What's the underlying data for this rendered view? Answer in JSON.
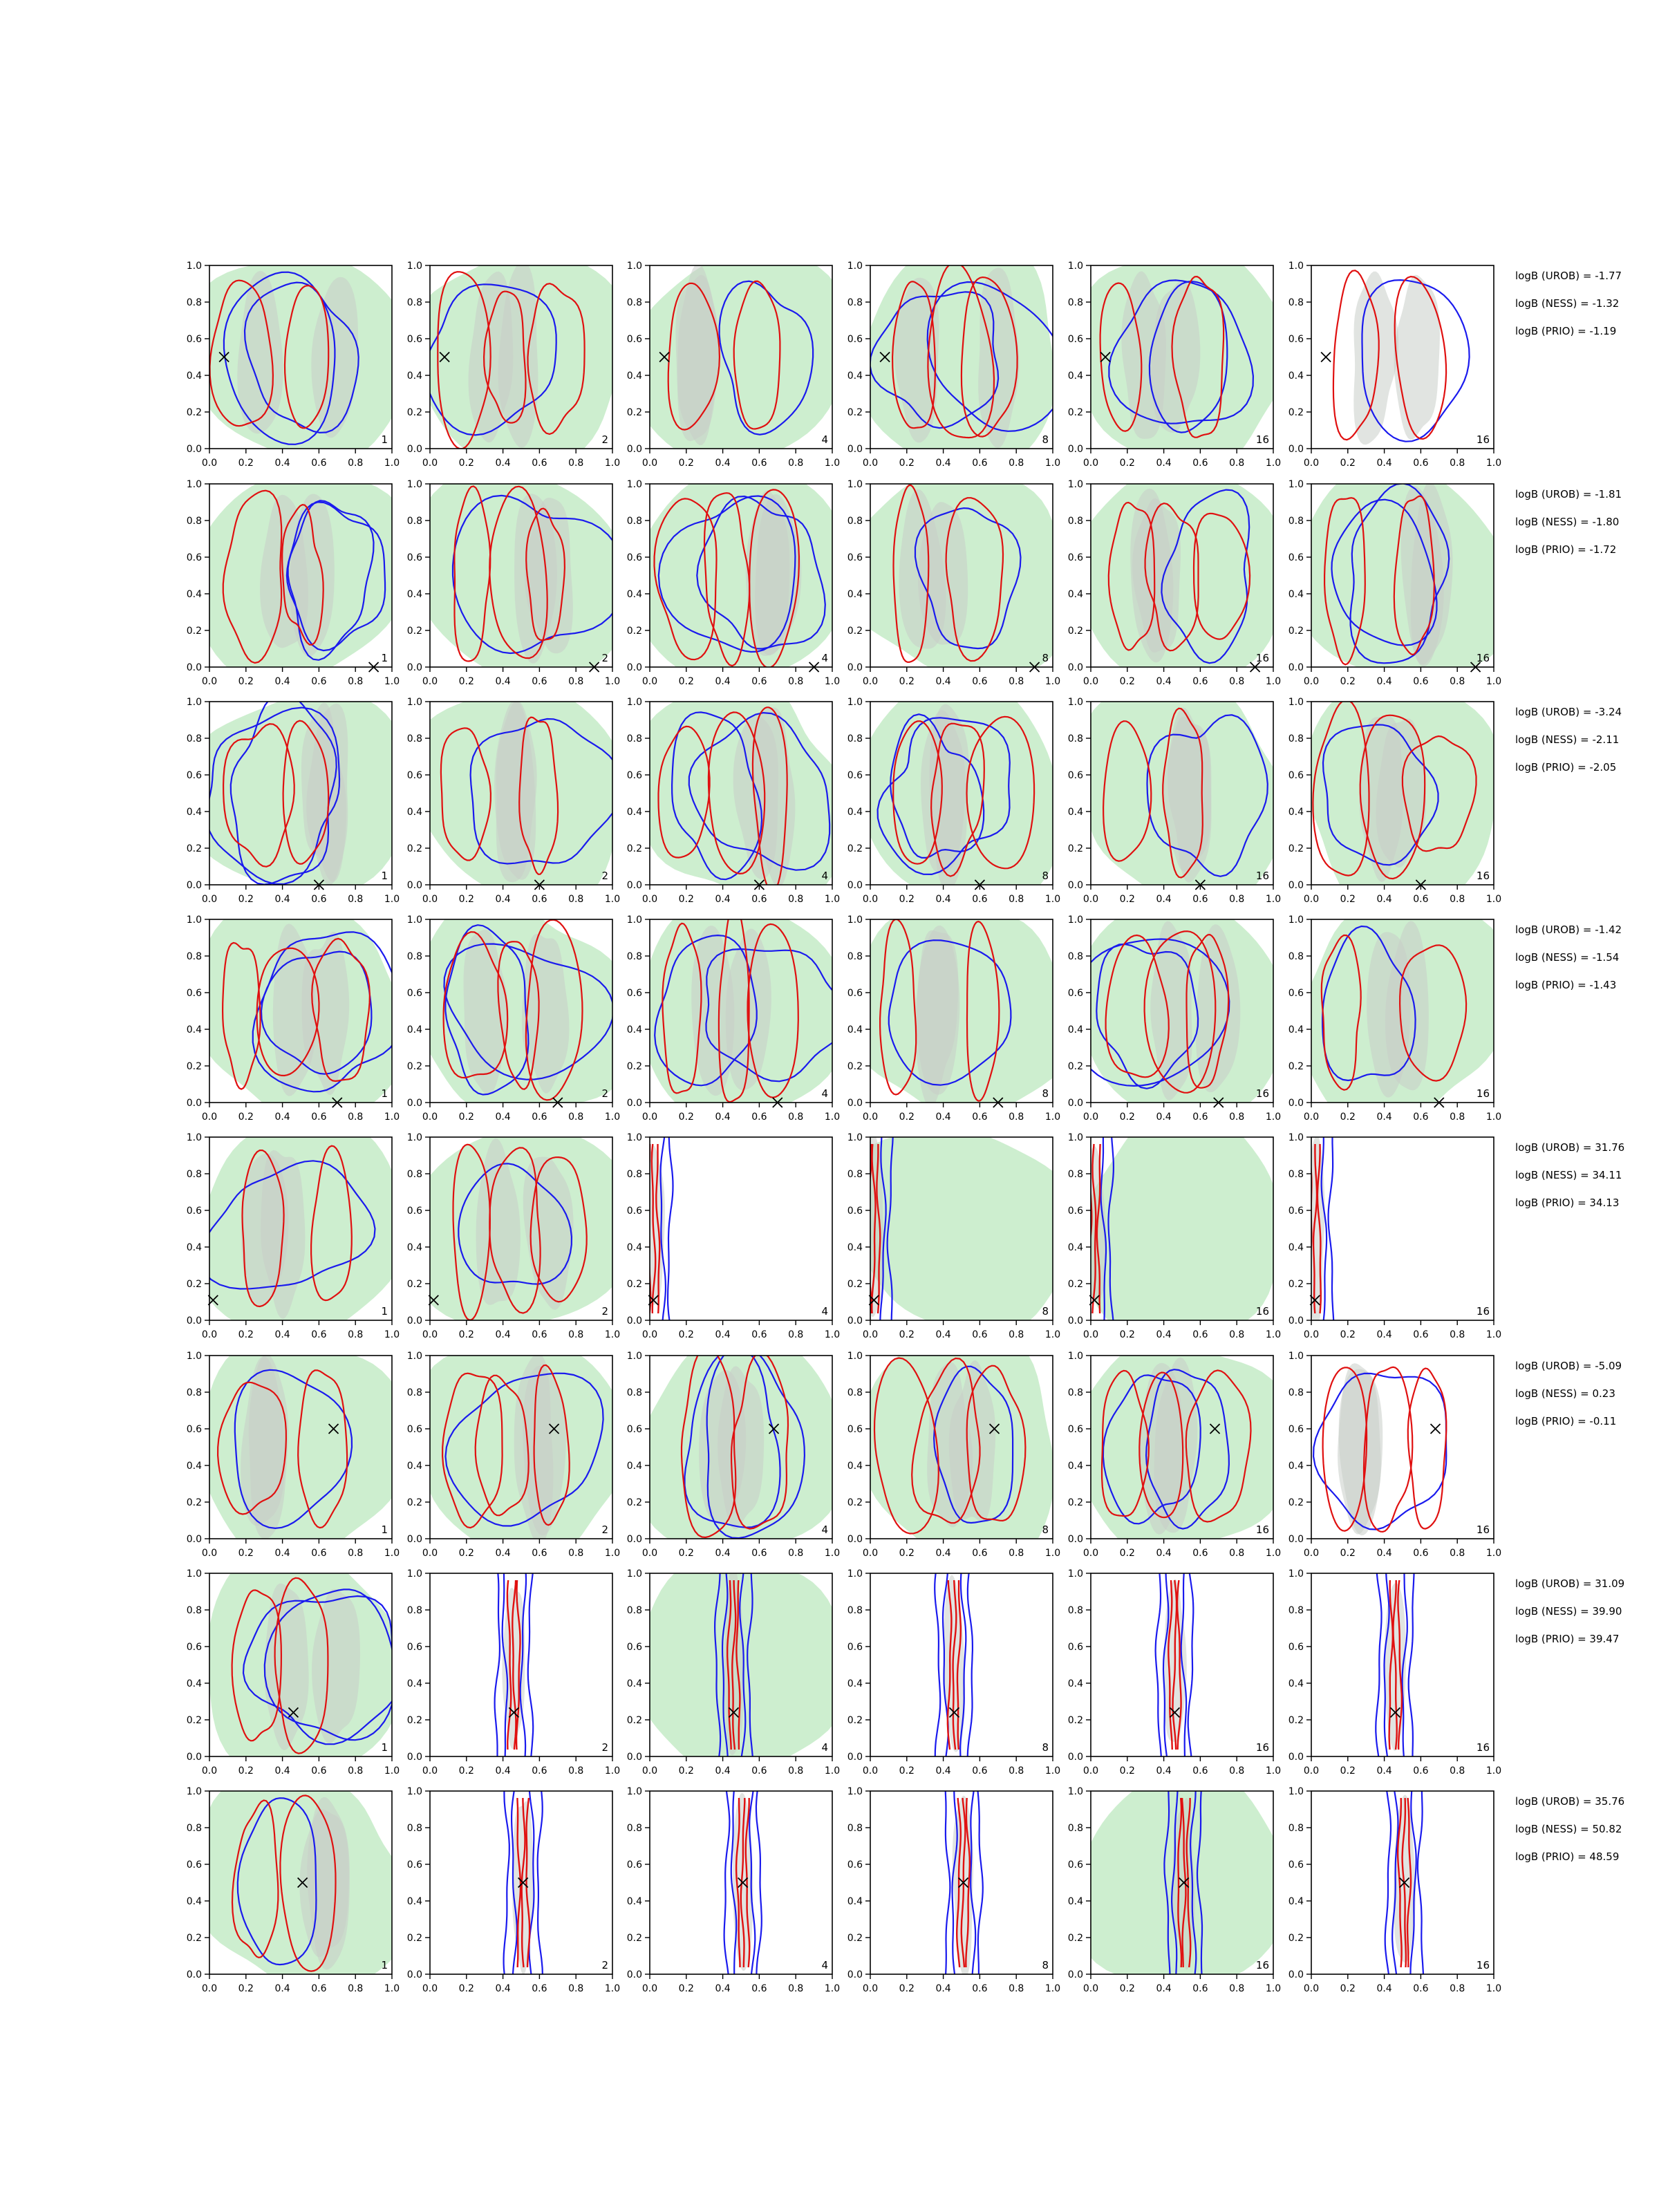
{
  "chart_data": {
    "type": "contour",
    "layout": {
      "rows": 8,
      "cols": 6
    },
    "xlim": [
      0.0,
      1.0
    ],
    "ylim": [
      0.0,
      1.0
    ],
    "ticks": [
      "0.0",
      "0.2",
      "0.4",
      "0.6",
      "0.8",
      "1.0"
    ],
    "colors": {
      "fill_green": "#cdeecf",
      "fill_gray": "#c9cdc9",
      "line_red": "#e01010",
      "line_blue": "#1a1aee",
      "marker": "#000000"
    },
    "panel_labels": [
      "1",
      "2",
      "4",
      "8",
      "16",
      "16"
    ],
    "rows": [
      {
        "true_point": [
          0.08,
          0.5
        ],
        "logB": [
          "logB (UROB) = -1.77",
          "logB (NESS) = -1.32",
          "logB (PRIO) = -1.19"
        ]
      },
      {
        "true_point": [
          0.9,
          0.0
        ],
        "logB": [
          "logB (UROB) = -1.81",
          "logB (NESS) = -1.80",
          "logB (PRIO) = -1.72"
        ]
      },
      {
        "true_point": [
          0.6,
          0.0
        ],
        "logB": [
          "logB (UROB) = -3.24",
          "logB (NESS) = -2.11",
          "logB (PRIO) = -2.05"
        ]
      },
      {
        "true_point": [
          0.7,
          0.0
        ],
        "logB": [
          "logB (UROB) = -1.42",
          "logB (NESS) = -1.54",
          "logB (PRIO) = -1.43"
        ]
      },
      {
        "true_point": [
          0.02,
          0.11
        ],
        "logB": [
          "logB (UROB) = 31.76",
          "logB (NESS) = 34.11",
          "logB (PRIO) = 34.13"
        ]
      },
      {
        "true_point": [
          0.68,
          0.6
        ],
        "logB": [
          "logB (UROB) = -5.09",
          "logB (NESS) = 0.23",
          "logB (PRIO) = -0.11"
        ]
      },
      {
        "true_point": [
          0.46,
          0.24
        ],
        "logB": [
          "logB (UROB) = 31.09",
          "logB (NESS) = 39.90",
          "logB (PRIO) = 39.47"
        ]
      },
      {
        "true_point": [
          0.51,
          0.5
        ],
        "logB": [
          "logB (UROB) = 35.76",
          "logB (NESS) = 50.82",
          "logB (PRIO) = 48.59"
        ]
      }
    ]
  }
}
